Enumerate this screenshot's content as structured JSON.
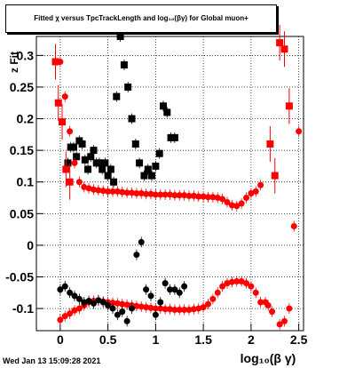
{
  "chart_data": {
    "type": "scatter",
    "title": "Fitted  χ versus TpcTrackLength and log₁₀(βγ) for Global muon+",
    "xlabel": "log₁₀(β γ)",
    "ylabel": "z Fit",
    "xlim": [
      -0.25,
      2.55
    ],
    "ylim": [
      -0.135,
      0.33
    ],
    "grid": true,
    "x_ticks": [
      0,
      0.5,
      1,
      1.5,
      2,
      2.5
    ],
    "x_tick_labels": [
      "0",
      "0.5",
      "1",
      "1.5",
      "2",
      "2.5"
    ],
    "y_ticks": [
      -0.1,
      -0.05,
      0,
      0.05,
      0.1,
      0.15,
      0.2,
      0.25,
      0.3
    ],
    "y_tick_labels": [
      "-0.1",
      "-0.05",
      "0",
      "0.05",
      "0.1",
      "0.15",
      "0.2",
      "0.25",
      "0.3"
    ],
    "series": [
      {
        "marker": "square",
        "color": "#000000",
        "x": [
          0.59,
          0.63,
          0.67,
          0.71,
          0.75,
          0.79,
          0.83,
          0.88,
          0.92,
          0.96,
          1.0,
          1.04,
          1.08,
          1.12,
          1.16,
          1.2
        ],
        "y": [
          0.235,
          0.33,
          0.285,
          0.25,
          0.2,
          0.16,
          0.13,
          0.11,
          0.12,
          0.11,
          0.125,
          0.145,
          0.22,
          0.21,
          0.17,
          0.17
        ]
      },
      {
        "marker": "square",
        "color": "#000000",
        "x": [
          0.08,
          0.11,
          0.14,
          0.17,
          0.2,
          0.23,
          0.26,
          0.29,
          0.32,
          0.35,
          0.38,
          0.41,
          0.44,
          0.47,
          0.5,
          0.53,
          0.56
        ],
        "y": [
          0.13,
          0.155,
          0.155,
          0.14,
          0.165,
          0.16,
          0.135,
          0.12,
          0.14,
          0.15,
          0.13,
          0.13,
          0.12,
          0.13,
          0.11,
          0.12,
          0.1
        ]
      },
      {
        "marker": "circle",
        "color": "#ff0000",
        "x": [
          0.0,
          0.05,
          0.1,
          0.15,
          0.2,
          0.25,
          0.3,
          0.35,
          0.4,
          0.45,
          0.5,
          0.55,
          0.6,
          0.65,
          0.7,
          0.75,
          0.8,
          0.85,
          0.9,
          0.95,
          1.0,
          1.05,
          1.1,
          1.15,
          1.2,
          1.25,
          1.3,
          1.35,
          1.4,
          1.45,
          1.5,
          1.55,
          1.6,
          1.65,
          1.7,
          1.75,
          1.8,
          1.85,
          1.9,
          1.95,
          2.0,
          2.05,
          2.1
        ],
        "y": [
          0.29,
          0.235,
          0.18,
          0.13,
          0.1,
          0.092,
          0.09,
          0.088,
          0.087,
          0.086,
          0.085,
          0.085,
          0.085,
          0.084,
          0.083,
          0.083,
          0.082,
          0.082,
          0.081,
          0.081,
          0.08,
          0.08,
          0.08,
          0.08,
          0.079,
          0.079,
          0.079,
          0.078,
          0.078,
          0.077,
          0.077,
          0.076,
          0.076,
          0.075,
          0.073,
          0.068,
          0.063,
          0.062,
          0.066,
          0.075,
          0.082,
          0.085,
          0.095
        ]
      },
      {
        "marker": "circle",
        "color": "#ff0000",
        "x": [
          0.0,
          0.05,
          0.1,
          0.15,
          0.2,
          0.25,
          0.3,
          0.35,
          0.4,
          0.45,
          0.5,
          0.55,
          0.6,
          0.65,
          0.7,
          0.75,
          0.8,
          0.85,
          0.9,
          0.95,
          1.0,
          1.05,
          1.1,
          1.15,
          1.2,
          1.25,
          1.3,
          1.35,
          1.4,
          1.45,
          1.5,
          1.55,
          1.6,
          1.65,
          1.7,
          1.75,
          1.8,
          1.85,
          1.9,
          1.95,
          2.0,
          2.05,
          2.1
        ],
        "y": [
          -0.118,
          -0.112,
          -0.108,
          -0.103,
          -0.1,
          -0.095,
          -0.09,
          -0.088,
          -0.087,
          -0.089,
          -0.09,
          -0.091,
          -0.092,
          -0.093,
          -0.094,
          -0.095,
          -0.096,
          -0.097,
          -0.098,
          -0.099,
          -0.1,
          -0.1,
          -0.101,
          -0.101,
          -0.102,
          -0.102,
          -0.102,
          -0.102,
          -0.101,
          -0.1,
          -0.098,
          -0.093,
          -0.085,
          -0.075,
          -0.065,
          -0.06,
          -0.058,
          -0.057,
          -0.057,
          -0.06,
          -0.065,
          -0.075,
          -0.09
        ]
      },
      {
        "marker": "circle",
        "color": "#000000",
        "x": [
          0.0,
          0.05,
          0.1,
          0.15,
          0.2,
          0.25,
          0.3,
          0.35,
          0.4,
          0.45,
          0.5,
          0.55,
          0.6,
          0.65,
          0.7,
          0.75,
          0.8,
          0.85,
          0.9,
          0.95,
          1.0,
          1.05,
          1.1,
          1.15,
          1.2,
          1.25,
          1.3
        ],
        "y": [
          -0.07,
          -0.065,
          -0.075,
          -0.08,
          -0.085,
          -0.09,
          -0.088,
          -0.092,
          -0.087,
          -0.09,
          -0.095,
          -0.1,
          -0.11,
          -0.105,
          -0.12,
          -0.1,
          -0.015,
          0.005,
          -0.07,
          -0.08,
          -0.11,
          -0.09,
          -0.06,
          -0.07,
          -0.07,
          -0.075,
          -0.065
        ]
      },
      {
        "marker": "circle",
        "color": "#ff0000",
        "x": [
          2.15,
          2.18,
          2.22,
          2.3,
          2.35,
          2.4,
          2.45,
          2.5
        ],
        "y": [
          -0.09,
          -0.095,
          -0.105,
          -0.125,
          -0.12,
          -0.1,
          0.03,
          0.18
        ]
      }
    ],
    "notes_points": {
      "red_square": {
        "x": [
          -0.05,
          -0.02,
          0.02,
          0.06,
          0.1,
          2.2,
          2.25,
          2.3,
          2.35,
          2.4
        ],
        "y": [
          0.29,
          0.225,
          0.195,
          0.12,
          0.1,
          0.16,
          0.11,
          0.32,
          0.31,
          0.22
        ]
      }
    }
  },
  "footer": {
    "timestamp": "Wed Jan 13 15:09:28 2021"
  }
}
